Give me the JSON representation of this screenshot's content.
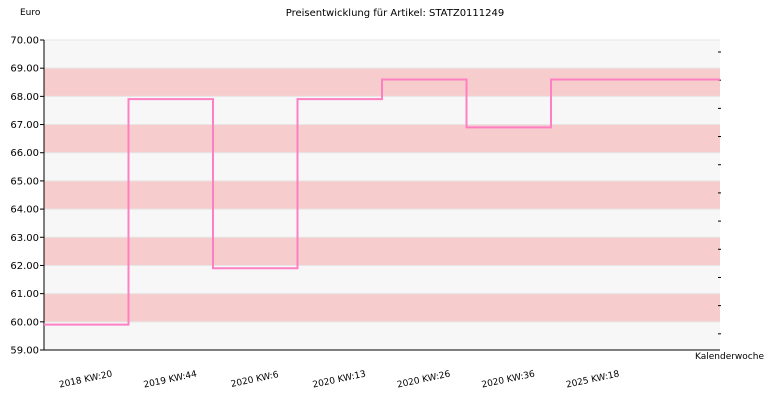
{
  "chart_data": {
    "type": "line",
    "step": true,
    "title": "Preisentwicklung für Artikel: STATZ0111249",
    "ylabel": "Euro",
    "xlabel": "Kalenderwoche",
    "ylim": [
      59.0,
      70.0
    ],
    "yticks": [
      "59.00",
      "60.00",
      "61.00",
      "62.00",
      "63.00",
      "64.00",
      "65.00",
      "66.00",
      "67.00",
      "68.00",
      "69.00",
      "70.00"
    ],
    "categories": [
      "2018 KW:20",
      "2019 KW:44",
      "2020 KW:6",
      "2020 KW:13",
      "2020 KW:26",
      "2020 KW:36",
      "2025 KW:18"
    ],
    "series": [
      {
        "values": [
          59.9,
          67.9,
          61.9,
          67.9,
          68.6,
          66.9,
          68.6
        ]
      }
    ],
    "grid": true,
    "legend": "none",
    "colors": {
      "line": "#ff7fc3",
      "band_dark": "#f7cccc",
      "band_light": "#f7f7f7",
      "axis": "#000000"
    }
  }
}
